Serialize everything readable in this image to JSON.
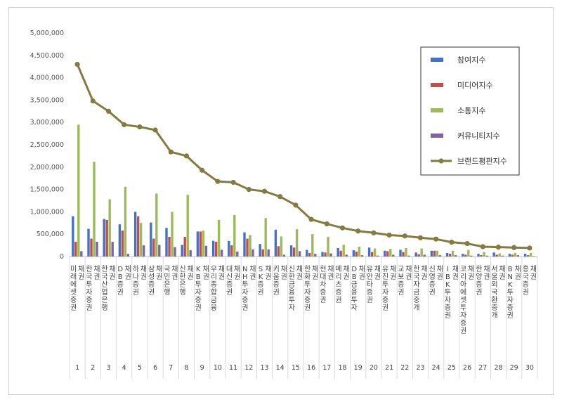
{
  "chart_data": {
    "type": "bar",
    "yticks": [
      "0",
      "500,000",
      "1,000,000",
      "1,500,000",
      "2,000,000",
      "2,500,000",
      "3,000,000",
      "3,500,000",
      "4,000,000",
      "4,500,000",
      "5,000,000"
    ],
    "ylim": [
      0,
      5000000
    ],
    "grid": false,
    "legend_position": "top-right",
    "categories": [
      "미래에셋증권 채권",
      "한국투자증권 채권",
      "한국산업은행 채권",
      "DB증권 채권",
      "하나증권 채권",
      "삼성증권 채권",
      "국민은행 채권",
      "신한은행 채권",
      "KB투자증권 채권",
      "우리종합금융 채권",
      "대신증권 채권",
      "NH투자증권 채권",
      "SK증권 채권",
      "키움증권 채권",
      "신한금융투자 채권",
      "한화투자증권 채권",
      "현대차증권 채권",
      "메리츠증권 채권",
      "DB금융투자 채권",
      "유안타증권 채권",
      "유진투자증권 채권",
      "교보증권 채권",
      "한국자금중개 채권",
      "신영증권 채권",
      "IBK투자증권 채권",
      "코리아에셋투자증권 채권",
      "한양증권 채권",
      "서울외국환중개 채권",
      "BNK투자증권 채권",
      "흥국증권 채권"
    ],
    "numbers": [
      "1",
      "2",
      "3",
      "4",
      "5",
      "6",
      "7",
      "8",
      "9",
      "10",
      "11",
      "12",
      "13",
      "14",
      "15",
      "16",
      "17",
      "18",
      "19",
      "20",
      "21",
      "22",
      "23",
      "24",
      "25",
      "26",
      "27",
      "28",
      "29",
      "30"
    ],
    "series": [
      {
        "name": "참여지수",
        "color": "#4472c4",
        "values": [
          900000,
          620000,
          840000,
          720000,
          1000000,
          760000,
          640000,
          260000,
          560000,
          350000,
          350000,
          540000,
          280000,
          600000,
          250000,
          150000,
          100000,
          190000,
          140000,
          200000,
          130000,
          150000,
          90000,
          130000,
          80000,
          60000,
          60000,
          90000,
          60000,
          60000
        ]
      },
      {
        "name": "미디어지수",
        "color": "#c0504d",
        "values": [
          330000,
          400000,
          820000,
          580000,
          900000,
          400000,
          440000,
          440000,
          560000,
          330000,
          250000,
          400000,
          160000,
          230000,
          200000,
          80000,
          90000,
          130000,
          110000,
          100000,
          120000,
          100000,
          50000,
          130000,
          60000,
          40000,
          30000,
          40000,
          40000,
          30000
        ]
      },
      {
        "name": "소통지수",
        "color": "#9bbb59",
        "values": [
          2950000,
          2120000,
          1280000,
          1560000,
          750000,
          1410000,
          1000000,
          1380000,
          580000,
          820000,
          930000,
          480000,
          860000,
          450000,
          610000,
          500000,
          440000,
          260000,
          220000,
          180000,
          170000,
          190000,
          180000,
          130000,
          130000,
          150000,
          100000,
          70000,
          80000,
          80000
        ]
      },
      {
        "name": "커뮤니티지수",
        "color": "#8064a2",
        "values": [
          120000,
          330000,
          330000,
          60000,
          250000,
          260000,
          210000,
          140000,
          240000,
          150000,
          110000,
          160000,
          160000,
          40000,
          120000,
          60000,
          70000,
          40000,
          30000,
          20000,
          40000,
          20000,
          40000,
          30000,
          30000,
          20000,
          20000,
          20000,
          30000,
          10000
        ]
      },
      {
        "name": "브랜드평판지수",
        "color": "#857a3f",
        "type": "line",
        "values": [
          4300000,
          3480000,
          3250000,
          2950000,
          2900000,
          2830000,
          2340000,
          2250000,
          1930000,
          1680000,
          1660000,
          1500000,
          1460000,
          1340000,
          1150000,
          830000,
          730000,
          640000,
          570000,
          530000,
          480000,
          460000,
          420000,
          390000,
          320000,
          290000,
          220000,
          210000,
          200000,
          190000
        ]
      }
    ]
  }
}
